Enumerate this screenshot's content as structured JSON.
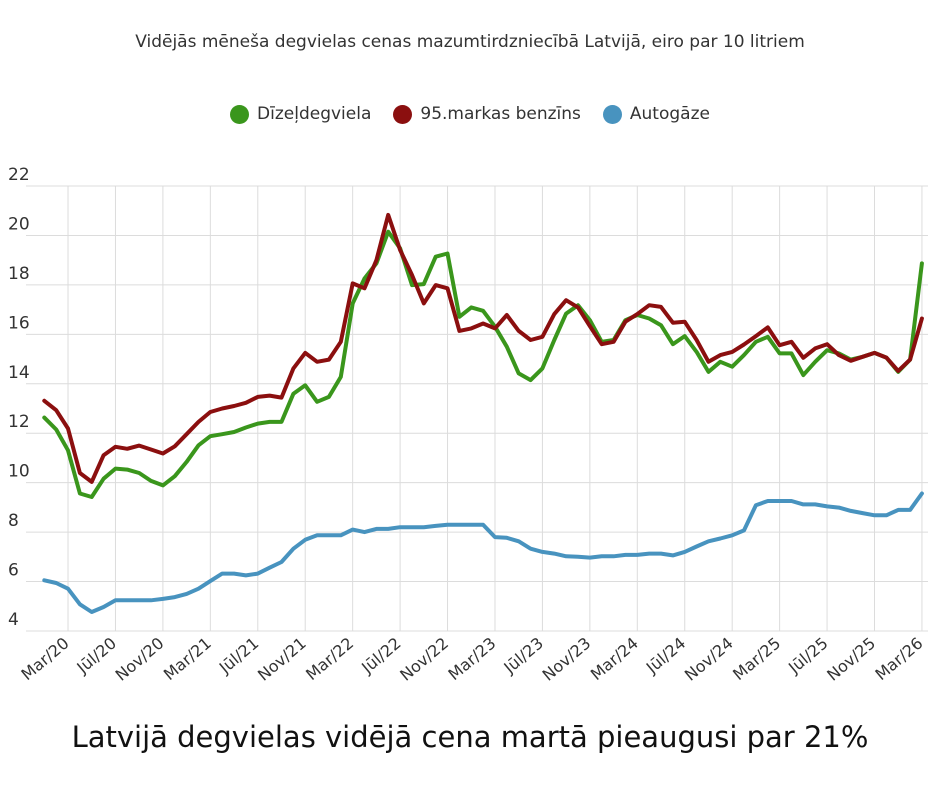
{
  "chart_data": {
    "type": "line",
    "title": "Vidējās mēneša degvielas cenas mazumtirdzniecībā Latvijā, eiro par 10 litriem",
    "headline": "Latvijā degvielas vidējā cena martā pieaugusi par 21%",
    "xlabel": "",
    "ylabel": "",
    "ylim": [
      4,
      22
    ],
    "yticks": [
      "22",
      "20",
      "18",
      "16",
      "14",
      "12",
      "10",
      "8",
      "6",
      "4"
    ],
    "xticks": [
      "Mar/20",
      "Jūl/20",
      "Nov/20",
      "Mar/21",
      "Jūl/21",
      "Nov/21",
      "Mar/22",
      "Jūl/22",
      "Nov/22",
      "Mar/23",
      "Jūl/23",
      "Nov/23",
      "Mar/24",
      "Jūl/24",
      "Nov/24",
      "Mar/25",
      "Jūl/25",
      "Nov/25",
      "Mar/26"
    ],
    "grid": true,
    "legend_position": "top",
    "x": [
      "2020-01",
      "2020-02",
      "2020-03",
      "2020-04",
      "2020-05",
      "2020-06",
      "2020-07",
      "2020-08",
      "2020-09",
      "2020-10",
      "2020-11",
      "2020-12",
      "2021-01",
      "2021-02",
      "2021-03",
      "2021-04",
      "2021-05",
      "2021-06",
      "2021-07",
      "2021-08",
      "2021-09",
      "2021-10",
      "2021-11",
      "2021-12",
      "2022-01",
      "2022-02",
      "2022-03",
      "2022-04",
      "2022-05",
      "2022-06",
      "2022-07",
      "2022-08",
      "2022-09",
      "2022-10",
      "2022-11",
      "2022-12",
      "2023-01",
      "2023-02",
      "2023-03",
      "2023-04",
      "2023-05",
      "2023-06",
      "2023-07",
      "2023-08",
      "2023-09",
      "2023-10",
      "2023-11",
      "2023-12",
      "2024-01",
      "2024-02",
      "2024-03",
      "2024-04",
      "2024-05",
      "2024-06",
      "2024-07",
      "2024-08",
      "2024-09",
      "2024-10",
      "2024-11",
      "2024-12",
      "2025-01",
      "2025-02",
      "2025-03",
      "2025-04",
      "2025-05",
      "2025-06",
      "2025-07",
      "2025-08",
      "2025-09",
      "2025-10",
      "2025-11",
      "2025-12",
      "2026-01",
      "2026-02",
      "2026-03"
    ],
    "series": [
      {
        "name": "Dīzeļdegviela",
        "color": "#3a961c",
        "values": [
          12.63,
          12.15,
          11.31,
          9.56,
          9.42,
          10.16,
          10.57,
          10.53,
          10.39,
          10.07,
          9.89,
          10.26,
          10.84,
          11.51,
          11.88,
          11.96,
          12.05,
          12.23,
          12.39,
          12.46,
          12.46,
          13.6,
          13.94,
          13.27,
          13.47,
          14.28,
          17.25,
          18.26,
          18.87,
          20.15,
          19.48,
          17.99,
          18.03,
          19.14,
          19.27,
          16.71,
          17.09,
          16.95,
          16.31,
          15.5,
          14.42,
          14.15,
          14.62,
          15.77,
          16.84,
          17.18,
          16.57,
          15.7,
          15.77,
          16.57,
          16.78,
          16.64,
          16.37,
          15.6,
          15.93,
          15.29,
          14.48,
          14.89,
          14.69,
          15.16,
          15.7,
          15.9,
          15.23,
          15.23,
          14.35,
          14.89,
          15.36,
          15.23,
          14.98,
          15.09,
          15.25,
          15.06,
          14.48,
          14.98,
          18.87
        ]
      },
      {
        "name": "95.markas benzīns",
        "color": "#8b0f0f",
        "values": [
          13.31,
          12.93,
          12.19,
          10.39,
          10.03,
          11.11,
          11.45,
          11.37,
          11.5,
          11.34,
          11.18,
          11.47,
          11.96,
          12.46,
          12.86,
          13.0,
          13.1,
          13.23,
          13.47,
          13.52,
          13.44,
          14.62,
          15.25,
          14.89,
          14.98,
          15.7,
          18.06,
          17.86,
          19.0,
          20.83,
          19.41,
          18.4,
          17.25,
          17.99,
          17.86,
          16.14,
          16.24,
          16.44,
          16.24,
          16.78,
          16.14,
          15.77,
          15.9,
          16.82,
          17.38,
          17.09,
          16.33,
          15.6,
          15.7,
          16.51,
          16.82,
          17.18,
          17.11,
          16.47,
          16.51,
          15.77,
          14.89,
          15.16,
          15.29,
          15.59,
          15.93,
          16.28,
          15.56,
          15.7,
          15.05,
          15.43,
          15.6,
          15.16,
          14.93,
          15.09,
          15.25,
          15.06,
          14.52,
          14.98,
          16.64
        ]
      },
      {
        "name": "Autogāze",
        "color": "#4893bf",
        "values": [
          6.05,
          5.94,
          5.71,
          5.08,
          4.77,
          4.97,
          5.24,
          5.24,
          5.24,
          5.24,
          5.3,
          5.37,
          5.5,
          5.71,
          6.02,
          6.32,
          6.32,
          6.25,
          6.32,
          6.56,
          6.79,
          7.33,
          7.69,
          7.87,
          7.87,
          7.87,
          8.1,
          8.0,
          8.13,
          8.13,
          8.2,
          8.2,
          8.2,
          8.25,
          8.3,
          8.3,
          8.3,
          8.3,
          7.8,
          7.77,
          7.63,
          7.33,
          7.2,
          7.13,
          7.02,
          7.0,
          6.97,
          7.02,
          7.02,
          7.08,
          7.08,
          7.13,
          7.13,
          7.06,
          7.2,
          7.42,
          7.63,
          7.74,
          7.87,
          8.07,
          9.09,
          9.26,
          9.26,
          9.26,
          9.12,
          9.12,
          9.04,
          8.99,
          8.86,
          8.77,
          8.68,
          8.68,
          8.9,
          8.9,
          9.56
        ]
      }
    ]
  }
}
